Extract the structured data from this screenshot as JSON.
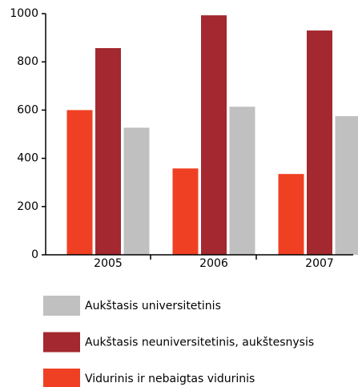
{
  "chart_data": {
    "type": "bar",
    "categories": [
      "2005",
      "2006",
      "2007"
    ],
    "series": [
      {
        "name": "Vidurinis ir nebaigtas vidurinis",
        "color": "#f04023",
        "values": [
          600,
          358,
          335
        ]
      },
      {
        "name": "Aukštasis neuniversitetinis, aukštesnysis",
        "color": "#a3282f",
        "values": [
          857,
          993,
          930
        ]
      },
      {
        "name": "Aukštasis universitetinis",
        "color": "#c0c0c0",
        "values": [
          527,
          614,
          575
        ]
      }
    ],
    "ylim": [
      0,
      1000
    ],
    "yticks": [
      0,
      200,
      400,
      600,
      800,
      1000
    ],
    "grid": false
  }
}
